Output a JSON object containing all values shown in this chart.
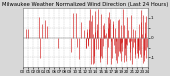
{
  "title": "Milwaukee Weather Normalized Wind Direction (Last 24 Hours)",
  "background_color": "#d8d8d8",
  "plot_bg": "#ffffff",
  "line_color": "#cc0000",
  "ylim": [
    -1.5,
    1.5
  ],
  "xlim": [
    0,
    287
  ],
  "num_points": 288,
  "grid_color": "#aaaaaa",
  "title_fontsize": 3.8,
  "tick_fontsize": 3.0,
  "yticks": [
    -1.0,
    -0.5,
    0.0,
    0.5,
    1.0
  ],
  "ytick_labels": [
    "-1",
    "",
    "0",
    "",
    "1"
  ]
}
